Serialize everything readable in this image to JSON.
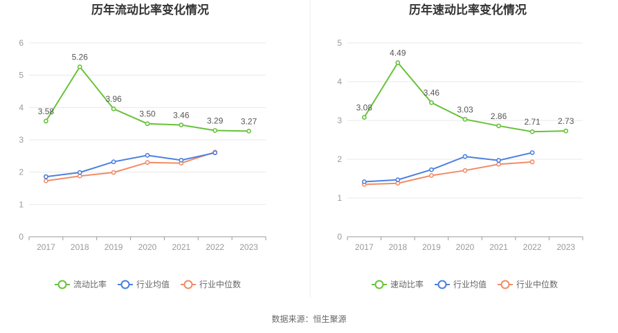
{
  "source_label": "数据来源：恒生聚源",
  "colors": {
    "primary": "#67c23a",
    "average": "#4a7fe0",
    "median": "#f28b66",
    "grid": "#e8e8e8",
    "axis": "#999999",
    "divider": "#eeeeee"
  },
  "chart_data": [
    {
      "type": "line",
      "title": "历年流动比率变化情况",
      "xlabel": "",
      "ylabel": "",
      "categories": [
        "2017",
        "2018",
        "2019",
        "2020",
        "2021",
        "2022",
        "2023"
      ],
      "ylim": [
        0,
        6
      ],
      "yticks": [
        0,
        1,
        2,
        3,
        4,
        5,
        6
      ],
      "grid": true,
      "legend_position": "bottom-center",
      "series": [
        {
          "name": "流动比率",
          "color": "#67c23a",
          "show_labels": true,
          "values": [
            3.58,
            5.26,
            3.96,
            3.5,
            3.46,
            3.29,
            3.27
          ]
        },
        {
          "name": "行业均值",
          "color": "#4a7fe0",
          "show_labels": false,
          "values": [
            1.86,
            1.99,
            2.32,
            2.52,
            2.37,
            2.6,
            null
          ]
        },
        {
          "name": "行业中位数",
          "color": "#f28b66",
          "show_labels": false,
          "values": [
            1.73,
            1.88,
            1.99,
            2.3,
            2.28,
            2.62,
            null
          ]
        }
      ]
    },
    {
      "type": "line",
      "title": "历年速动比率变化情况",
      "xlabel": "",
      "ylabel": "",
      "categories": [
        "2017",
        "2018",
        "2019",
        "2020",
        "2021",
        "2022",
        "2023"
      ],
      "ylim": [
        0,
        5
      ],
      "yticks": [
        0,
        1,
        2,
        3,
        4,
        5
      ],
      "grid": true,
      "legend_position": "bottom-center",
      "series": [
        {
          "name": "速动比率",
          "color": "#67c23a",
          "show_labels": true,
          "values": [
            3.08,
            4.49,
            3.46,
            3.03,
            2.86,
            2.71,
            2.73
          ]
        },
        {
          "name": "行业均值",
          "color": "#4a7fe0",
          "show_labels": false,
          "values": [
            1.42,
            1.47,
            1.73,
            2.07,
            1.97,
            2.17,
            null
          ]
        },
        {
          "name": "行业中位数",
          "color": "#f28b66",
          "show_labels": false,
          "values": [
            1.35,
            1.38,
            1.58,
            1.71,
            1.87,
            1.93,
            null
          ]
        }
      ]
    }
  ]
}
